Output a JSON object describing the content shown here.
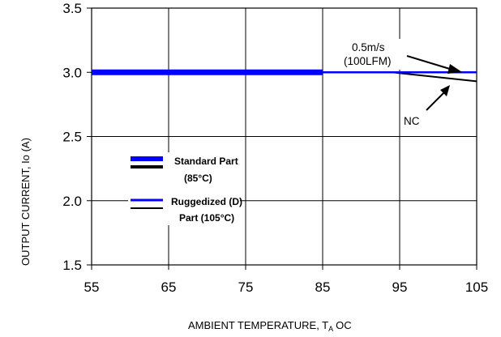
{
  "chart_data": {
    "type": "line",
    "xlabel": "AMBIENT TEMPERATURE, T",
    "xlabel_sub": "A",
    "xlabel_unit": "OC",
    "ylabel": "OUTPUT CURRENT, Io  (A)",
    "xlim": [
      55,
      105
    ],
    "ylim": [
      1.5,
      3.5
    ],
    "x_ticks": [
      "55",
      "65",
      "75",
      "85",
      "95",
      "105"
    ],
    "y_ticks": [
      "1.5",
      "2.0",
      "2.5",
      "3.0",
      "3.5"
    ],
    "grid": true,
    "colors": {
      "standard": "#0000ff",
      "ruggedized": "#0000ff",
      "nc": "#000000",
      "axis": "#000000"
    },
    "series": [
      {
        "key": "standard",
        "x": [
          55,
          85
        ],
        "y": [
          3.0,
          3.0
        ]
      },
      {
        "key": "ruggedized_05ms",
        "x": [
          85,
          95,
          105
        ],
        "y": [
          3.0,
          3.0,
          3.0
        ]
      },
      {
        "key": "ruggedized_nc",
        "x": [
          85,
          94,
          105
        ],
        "y": [
          3.0,
          3.0,
          2.93
        ]
      }
    ],
    "annotations": {
      "airflow_line1": "0.5m/s",
      "airflow_line2": "(100LFM)",
      "nc": "NC"
    },
    "legend": {
      "placement": "center-left",
      "standard_line1": "Standard Part",
      "standard_line2": "(85°C)",
      "ruggedized_line1": "Ruggedized (D)",
      "ruggedized_line2": "Part (105°C)"
    }
  }
}
